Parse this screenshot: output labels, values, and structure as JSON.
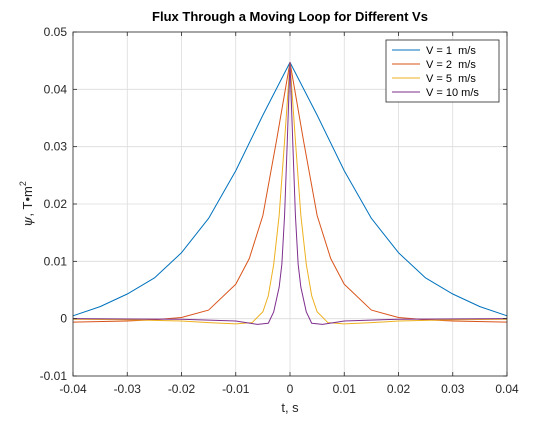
{
  "chart_data": {
    "type": "line",
    "title": "Flux Through a Moving Loop for Different Vs",
    "xlabel": "t, s",
    "ylabel_symbol": "ψ",
    "ylabel_units": ", T•m",
    "ylabel_exponent": "2",
    "xlim": [
      -0.04,
      0.04
    ],
    "ylim": [
      -0.01,
      0.05
    ],
    "xticks": [
      -0.04,
      -0.03,
      -0.02,
      -0.01,
      0,
      0.01,
      0.02,
      0.03,
      0.04
    ],
    "xtick_labels": [
      "-0.04",
      "-0.03",
      "-0.02",
      "-0.01",
      "0",
      "0.01",
      "0.02",
      "0.03",
      "0.04"
    ],
    "yticks": [
      -0.01,
      0,
      0.01,
      0.02,
      0.03,
      0.04,
      0.05
    ],
    "ytick_labels": [
      "-0.01",
      "0",
      "0.01",
      "0.02",
      "0.03",
      "0.04",
      "0.05"
    ],
    "grid": true,
    "legend_position": "top-right",
    "series": [
      {
        "name": "V = 1  m/s",
        "color": "#0072BD",
        "x": [
          -0.04,
          -0.035,
          -0.03,
          -0.025,
          -0.02,
          -0.015,
          -0.01,
          -0.005,
          0,
          0.005,
          0.01,
          0.015,
          0.02,
          0.025,
          0.03,
          0.035,
          0.04
        ],
        "y": [
          0.0005,
          0.0021,
          0.0043,
          0.0071,
          0.0115,
          0.0175,
          0.0258,
          0.0355,
          0.0447,
          0.0355,
          0.0258,
          0.0175,
          0.0115,
          0.0071,
          0.0043,
          0.0021,
          0.0005
        ]
      },
      {
        "name": "V = 2  m/s",
        "color": "#D95319",
        "x": [
          -0.04,
          -0.03,
          -0.025,
          -0.02,
          -0.015,
          -0.01,
          -0.0075,
          -0.005,
          -0.0025,
          0,
          0.0025,
          0.005,
          0.0075,
          0.01,
          0.015,
          0.02,
          0.025,
          0.03,
          0.04
        ],
        "y": [
          -0.0006,
          -0.0004,
          -0.0002,
          0.0002,
          0.0015,
          0.006,
          0.0105,
          0.018,
          0.031,
          0.0447,
          0.031,
          0.018,
          0.0105,
          0.006,
          0.0015,
          0.0002,
          -0.0002,
          -0.0004,
          -0.0006
        ]
      },
      {
        "name": "V = 5  m/s",
        "color": "#EDB120",
        "x": [
          -0.04,
          -0.03,
          -0.02,
          -0.015,
          -0.01,
          -0.007,
          -0.005,
          -0.004,
          -0.003,
          -0.002,
          -0.001,
          0,
          0.001,
          0.002,
          0.003,
          0.004,
          0.005,
          0.007,
          0.01,
          0.015,
          0.02,
          0.03,
          0.04
        ],
        "y": [
          -0.0001,
          -0.0002,
          -0.0004,
          -0.0007,
          -0.0009,
          -0.0007,
          0.0012,
          0.004,
          0.0095,
          0.018,
          0.031,
          0.0447,
          0.031,
          0.018,
          0.0095,
          0.004,
          0.0012,
          -0.0007,
          -0.0009,
          -0.0007,
          -0.0004,
          -0.0002,
          -0.0001
        ]
      },
      {
        "name": "V = 10 m/s",
        "color": "#7E2F8E",
        "x": [
          -0.04,
          -0.02,
          -0.01,
          -0.006,
          -0.004,
          -0.003,
          -0.002,
          -0.0015,
          -0.001,
          -0.0005,
          0,
          0.0005,
          0.001,
          0.0015,
          0.002,
          0.003,
          0.004,
          0.006,
          0.01,
          0.02,
          0.04
        ],
        "y": [
          0.0,
          -0.0001,
          -0.0004,
          -0.001,
          -0.0008,
          0.0012,
          0.0055,
          0.0095,
          0.018,
          0.031,
          0.0447,
          0.031,
          0.018,
          0.0095,
          0.0055,
          0.0012,
          -0.0008,
          -0.001,
          -0.0004,
          -0.0001,
          0.0
        ]
      }
    ]
  }
}
